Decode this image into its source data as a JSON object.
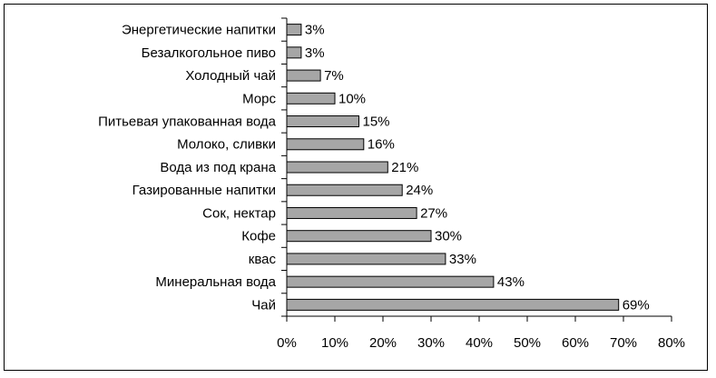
{
  "chart_data": {
    "type": "barh",
    "categories": [
      "Энергетические напитки",
      "Безалкогольное пиво",
      "Холодный чай",
      "Морс",
      "Питьевая упакованная вода",
      "Молоко, сливки",
      "Вода из под крана",
      "Газированные напитки",
      "Сок, нектар",
      "Кофе",
      "квас",
      "Минеральная вода",
      "Чай"
    ],
    "values": [
      3,
      3,
      7,
      10,
      15,
      16,
      21,
      24,
      27,
      30,
      33,
      43,
      69
    ],
    "value_labels": [
      "3%",
      "3%",
      "7%",
      "10%",
      "15%",
      "16%",
      "21%",
      "24%",
      "27%",
      "30%",
      "33%",
      "43%",
      "69%"
    ],
    "color": "#a6a6a6",
    "xlim": [
      0,
      80
    ],
    "xticks": [
      {
        "value": 0,
        "label": "0%"
      },
      {
        "value": 10,
        "label": "10%"
      },
      {
        "value": 20,
        "label": "20%"
      },
      {
        "value": 30,
        "label": "30%"
      },
      {
        "value": 40,
        "label": "40%"
      },
      {
        "value": 50,
        "label": "50%"
      },
      {
        "value": 60,
        "label": "60%"
      },
      {
        "value": 70,
        "label": "70%"
      },
      {
        "value": 80,
        "label": "80%"
      }
    ],
    "grid": false
  }
}
